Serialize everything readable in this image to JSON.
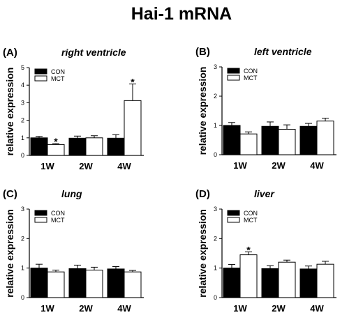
{
  "title": "Hai-1 mRNA",
  "chart_data": [
    {
      "type": "bar",
      "panel": "(A)",
      "title": "right ventricle",
      "ylabel": "relative expression",
      "ylim": [
        0,
        5
      ],
      "yticks": [
        "0",
        "1",
        "2",
        "3",
        "4",
        "5"
      ],
      "categories": [
        "1W",
        "2W",
        "4W"
      ],
      "series": [
        {
          "name": "CON",
          "color": "#000000",
          "values": [
            1.0,
            0.98,
            0.98
          ],
          "errors": [
            0.08,
            0.12,
            0.2
          ]
        },
        {
          "name": "MCT",
          "color": "#ffffff",
          "values": [
            0.62,
            1.0,
            3.12
          ],
          "errors": [
            0.05,
            0.12,
            0.95
          ]
        }
      ],
      "significance": [
        {
          "category": "1W",
          "series": "MCT",
          "label": "*"
        },
        {
          "category": "4W",
          "series": "MCT",
          "label": "*"
        }
      ]
    },
    {
      "type": "bar",
      "panel": "(B)",
      "title": "left ventricle",
      "ylabel": "relative expression",
      "ylim": [
        0,
        3
      ],
      "yticks": [
        "0",
        "1",
        "2",
        "3"
      ],
      "categories": [
        "1W",
        "2W",
        "4W"
      ],
      "series": [
        {
          "name": "CON",
          "color": "#000000",
          "values": [
            1.0,
            0.97,
            0.97
          ],
          "errors": [
            0.1,
            0.15,
            0.1
          ]
        },
        {
          "name": "MCT",
          "color": "#ffffff",
          "values": [
            0.71,
            0.87,
            1.15
          ],
          "errors": [
            0.07,
            0.15,
            0.1
          ]
        }
      ],
      "significance": []
    },
    {
      "type": "bar",
      "panel": "(C)",
      "title": "lung",
      "ylabel": "relative expression",
      "ylim": [
        0,
        3
      ],
      "yticks": [
        "0",
        "1",
        "2",
        "3"
      ],
      "categories": [
        "1W",
        "2W",
        "4W"
      ],
      "series": [
        {
          "name": "CON",
          "color": "#000000",
          "values": [
            1.0,
            0.98,
            0.97
          ],
          "errors": [
            0.13,
            0.12,
            0.08
          ]
        },
        {
          "name": "MCT",
          "color": "#ffffff",
          "values": [
            0.87,
            0.93,
            0.87
          ],
          "errors": [
            0.06,
            0.1,
            0.05
          ]
        }
      ],
      "significance": []
    },
    {
      "type": "bar",
      "panel": "(D)",
      "title": "liver",
      "ylabel": "relative expression",
      "ylim": [
        0,
        3
      ],
      "yticks": [
        "0",
        "1",
        "2",
        "3"
      ],
      "categories": [
        "1W",
        "2W",
        "4W"
      ],
      "series": [
        {
          "name": "CON",
          "color": "#000000",
          "values": [
            1.0,
            0.98,
            0.97
          ],
          "errors": [
            0.12,
            0.1,
            0.1
          ]
        },
        {
          "name": "MCT",
          "color": "#ffffff",
          "values": [
            1.45,
            1.2,
            1.13
          ],
          "errors": [
            0.1,
            0.07,
            0.1
          ]
        }
      ],
      "significance": [
        {
          "category": "1W",
          "series": "MCT",
          "label": "*"
        }
      ]
    }
  ]
}
